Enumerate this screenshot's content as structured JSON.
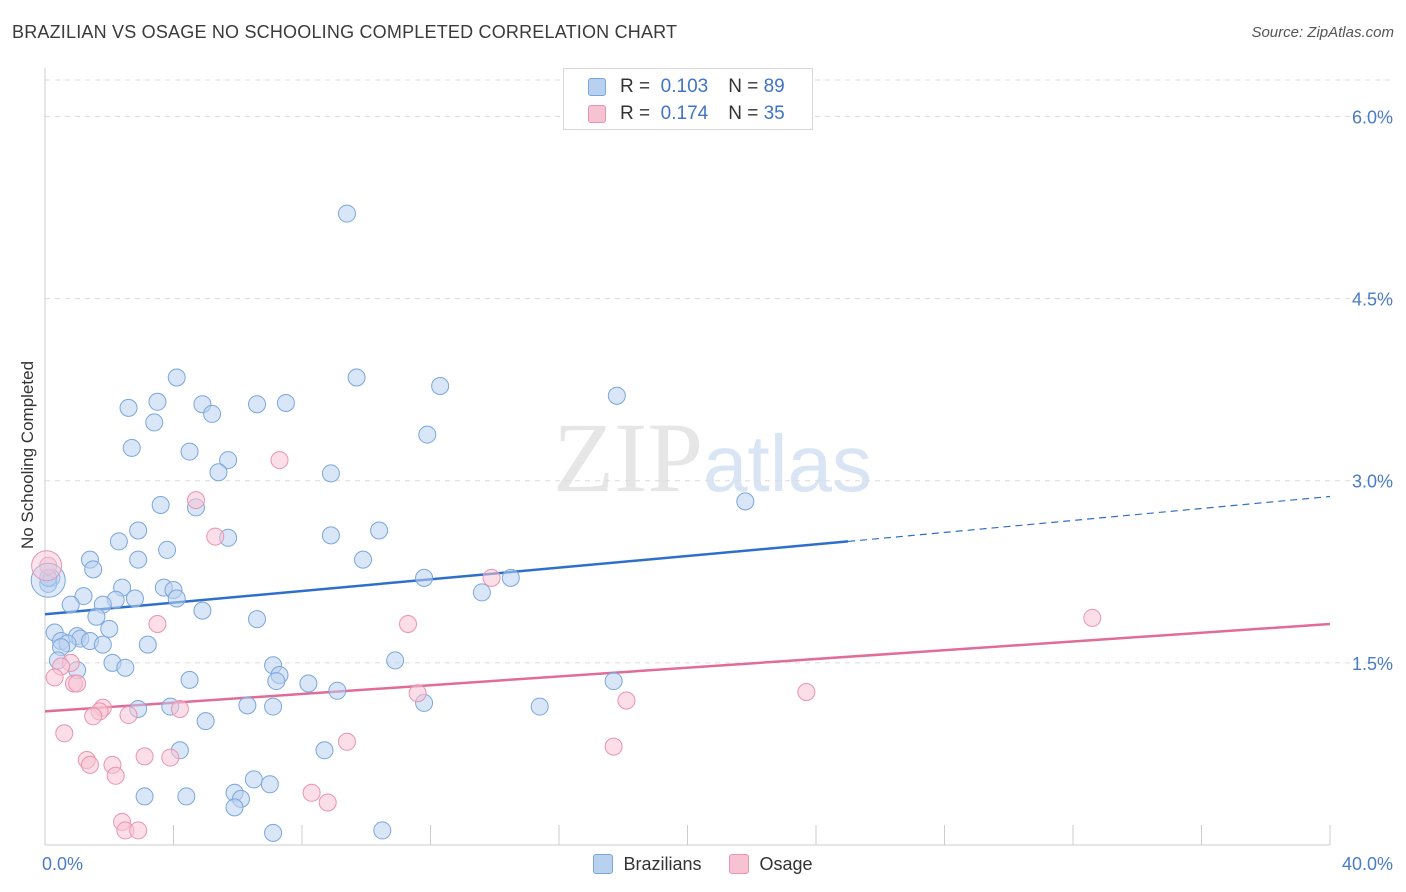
{
  "header": {
    "title": "BRAZILIAN VS OSAGE NO SCHOOLING COMPLETED CORRELATION CHART",
    "source": "Source: ZipAtlas.com"
  },
  "watermark": {
    "zip": "ZIP",
    "atlas": "atlas"
  },
  "legend_top": [
    {
      "r_label": "R =",
      "r_value": "0.103",
      "n_label": "N =",
      "n_value": "89"
    },
    {
      "r_label": "R =",
      "r_value": "0.174",
      "n_label": "N =",
      "n_value": "35"
    }
  ],
  "chart_data": {
    "type": "scatter",
    "title": "BRAZILIAN VS OSAGE NO SCHOOLING COMPLETED CORRELATION CHART",
    "xlabel": "",
    "ylabel": "No Schooling Completed",
    "xlim": [
      0,
      40
    ],
    "ylim": [
      0,
      6.3
    ],
    "x_tick_labels": [
      "0.0%",
      "40.0%"
    ],
    "y_ticks": [
      1.5,
      3.0,
      4.5,
      6.0
    ],
    "y_tick_labels": [
      "1.5%",
      "3.0%",
      "4.5%",
      "6.0%"
    ],
    "grid": "horizontal dashed",
    "legend_position": "top-center and bottom",
    "colors": {
      "Brazilians_fill": "#b9d1f1",
      "Brazilians_edge": "#7aa6dc",
      "Brazilians_line": "#2f6fcc",
      "Osage_fill": "#f7c3d3",
      "Osage_edge": "#ea93b0",
      "Osage_line": "#e06c98"
    },
    "series": [
      {
        "name": "Brazilians",
        "trend": {
          "x0": 0,
          "y0": 1.9,
          "x1": 25,
          "y1": 2.5,
          "dashed_to_x": 40,
          "dashed_to_y": 2.87
        },
        "points": [
          [
            9.4,
            5.2
          ],
          [
            4.1,
            3.85
          ],
          [
            9.7,
            3.85
          ],
          [
            12.3,
            3.78
          ],
          [
            17.8,
            3.7
          ],
          [
            3.5,
            3.65
          ],
          [
            4.9,
            3.63
          ],
          [
            6.6,
            3.63
          ],
          [
            7.5,
            3.64
          ],
          [
            2.6,
            3.6
          ],
          [
            5.2,
            3.55
          ],
          [
            3.4,
            3.48
          ],
          [
            11.9,
            3.38
          ],
          [
            2.7,
            3.27
          ],
          [
            4.5,
            3.24
          ],
          [
            5.7,
            3.17
          ],
          [
            5.4,
            3.07
          ],
          [
            8.9,
            3.06
          ],
          [
            3.6,
            2.8
          ],
          [
            4.7,
            2.78
          ],
          [
            21.8,
            2.83
          ],
          [
            2.9,
            2.59
          ],
          [
            10.4,
            2.59
          ],
          [
            5.7,
            2.53
          ],
          [
            8.9,
            2.55
          ],
          [
            2.3,
            2.5
          ],
          [
            3.8,
            2.43
          ],
          [
            2.9,
            2.35
          ],
          [
            9.9,
            2.35
          ],
          [
            1.4,
            2.35
          ],
          [
            1.5,
            2.27
          ],
          [
            0.2,
            2.2
          ],
          [
            0.1,
            2.15
          ],
          [
            11.8,
            2.2
          ],
          [
            14.5,
            2.2
          ],
          [
            2.4,
            2.12
          ],
          [
            3.7,
            2.12
          ],
          [
            4.0,
            2.1
          ],
          [
            13.6,
            2.08
          ],
          [
            1.2,
            2.05
          ],
          [
            2.8,
            2.03
          ],
          [
            4.1,
            2.03
          ],
          [
            2.2,
            2.02
          ],
          [
            1.8,
            1.98
          ],
          [
            0.8,
            1.98
          ],
          [
            4.9,
            1.93
          ],
          [
            1.6,
            1.88
          ],
          [
            6.6,
            1.86
          ],
          [
            2.0,
            1.78
          ],
          [
            0.3,
            1.75
          ],
          [
            0.5,
            1.68
          ],
          [
            1.0,
            1.72
          ],
          [
            1.1,
            1.7
          ],
          [
            1.4,
            1.68
          ],
          [
            0.7,
            1.66
          ],
          [
            0.5,
            1.63
          ],
          [
            1.8,
            1.65
          ],
          [
            3.2,
            1.65
          ],
          [
            0.4,
            1.52
          ],
          [
            2.1,
            1.5
          ],
          [
            2.5,
            1.46
          ],
          [
            7.1,
            1.48
          ],
          [
            10.9,
            1.52
          ],
          [
            1.0,
            1.44
          ],
          [
            4.5,
            1.36
          ],
          [
            7.3,
            1.4
          ],
          [
            7.2,
            1.35
          ],
          [
            8.2,
            1.33
          ],
          [
            17.7,
            1.35
          ],
          [
            9.1,
            1.27
          ],
          [
            11.8,
            1.17
          ],
          [
            15.4,
            1.14
          ],
          [
            2.9,
            1.12
          ],
          [
            3.9,
            1.14
          ],
          [
            6.3,
            1.15
          ],
          [
            7.1,
            1.14
          ],
          [
            5.0,
            1.02
          ],
          [
            4.2,
            0.78
          ],
          [
            8.7,
            0.78
          ],
          [
            6.5,
            0.54
          ],
          [
            7.0,
            0.5
          ],
          [
            5.9,
            0.43
          ],
          [
            3.1,
            0.4
          ],
          [
            4.4,
            0.4
          ],
          [
            6.1,
            0.38
          ],
          [
            5.9,
            0.31
          ],
          [
            10.5,
            0.12
          ],
          [
            7.1,
            0.1
          ],
          [
            0.1,
            2.2
          ]
        ]
      },
      {
        "name": "Osage",
        "trend": {
          "x0": 0,
          "y0": 1.1,
          "x1": 40,
          "y1": 1.82
        },
        "points": [
          [
            0.1,
            2.3
          ],
          [
            7.3,
            3.17
          ],
          [
            4.7,
            2.84
          ],
          [
            5.3,
            2.54
          ],
          [
            13.9,
            2.2
          ],
          [
            3.5,
            1.82
          ],
          [
            11.3,
            1.82
          ],
          [
            32.6,
            1.87
          ],
          [
            0.8,
            1.5
          ],
          [
            0.5,
            1.47
          ],
          [
            0.3,
            1.38
          ],
          [
            0.9,
            1.33
          ],
          [
            1.0,
            1.33
          ],
          [
            11.6,
            1.25
          ],
          [
            23.7,
            1.26
          ],
          [
            18.1,
            1.19
          ],
          [
            1.8,
            1.13
          ],
          [
            1.7,
            1.1
          ],
          [
            4.2,
            1.12
          ],
          [
            1.5,
            1.06
          ],
          [
            2.6,
            1.07
          ],
          [
            0.6,
            0.92
          ],
          [
            9.4,
            0.85
          ],
          [
            17.7,
            0.81
          ],
          [
            3.1,
            0.73
          ],
          [
            3.9,
            0.72
          ],
          [
            1.3,
            0.7
          ],
          [
            1.4,
            0.66
          ],
          [
            2.1,
            0.66
          ],
          [
            2.2,
            0.57
          ],
          [
            8.3,
            0.43
          ],
          [
            8.8,
            0.35
          ],
          [
            2.4,
            0.19
          ],
          [
            2.5,
            0.12
          ],
          [
            2.9,
            0.12
          ]
        ]
      }
    ]
  },
  "legend_bottom": [
    "Brazilians",
    "Osage"
  ]
}
